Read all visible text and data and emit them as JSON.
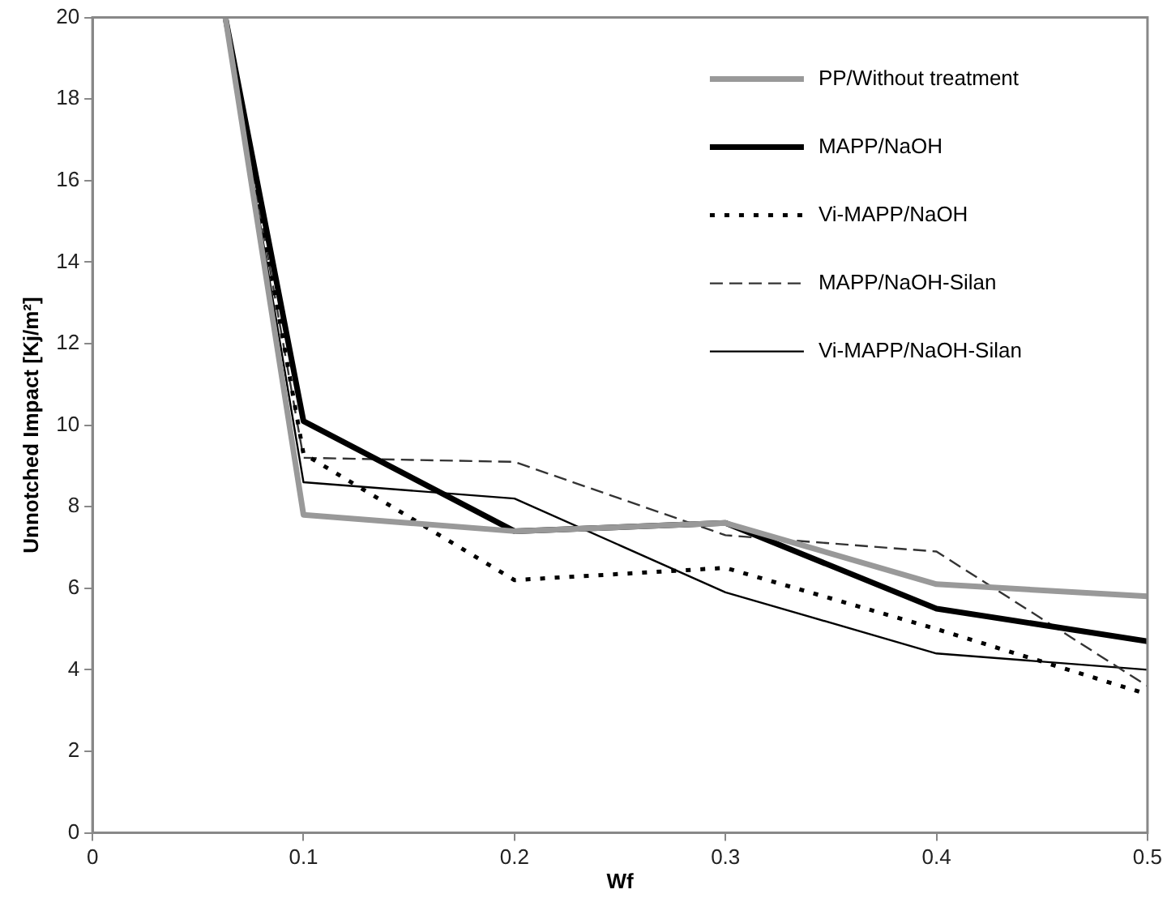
{
  "chart_data": {
    "type": "line",
    "xlabel": "Wf",
    "ylabel": "Unnotched Impact [Kj/m²]",
    "x": [
      0.063,
      0.1,
      0.2,
      0.3,
      0.4,
      0.5
    ],
    "xlim": [
      0,
      0.5
    ],
    "xticks": [
      0,
      0.1,
      0.2,
      0.3,
      0.4,
      0.5
    ],
    "ylim": [
      0,
      20
    ],
    "yticks": [
      0,
      2,
      4,
      6,
      8,
      10,
      12,
      14,
      16,
      18,
      20
    ],
    "grid": false,
    "legend": "top right",
    "marker": "none",
    "series": [
      {
        "name": "PP/Without treatment",
        "color": "#999999",
        "line_style": "solid",
        "values": [
          20,
          7.8,
          7.4,
          7.6,
          6.1,
          5.8
        ]
      },
      {
        "name": "MAPP/NaOH",
        "color": "#000000",
        "line_style": "solid",
        "values": [
          20,
          10.1,
          7.4,
          7.6,
          5.5,
          4.7
        ]
      },
      {
        "name": "Vi-MAPP/NaOH",
        "color": "#000000",
        "line_style": "dotted",
        "values": [
          20,
          9.3,
          6.2,
          6.5,
          5.0,
          3.4
        ]
      },
      {
        "name": "MAPP/NaOH-Silan",
        "color": "#333333",
        "line_style": "dashed",
        "values": [
          20,
          9.2,
          9.1,
          7.3,
          6.9,
          3.6
        ]
      },
      {
        "name": "Vi-MAPP/NaOH-Silan",
        "color": "#000000",
        "line_style": "solid",
        "values": [
          20,
          8.6,
          8.2,
          5.9,
          4.4,
          4.0
        ]
      }
    ]
  }
}
